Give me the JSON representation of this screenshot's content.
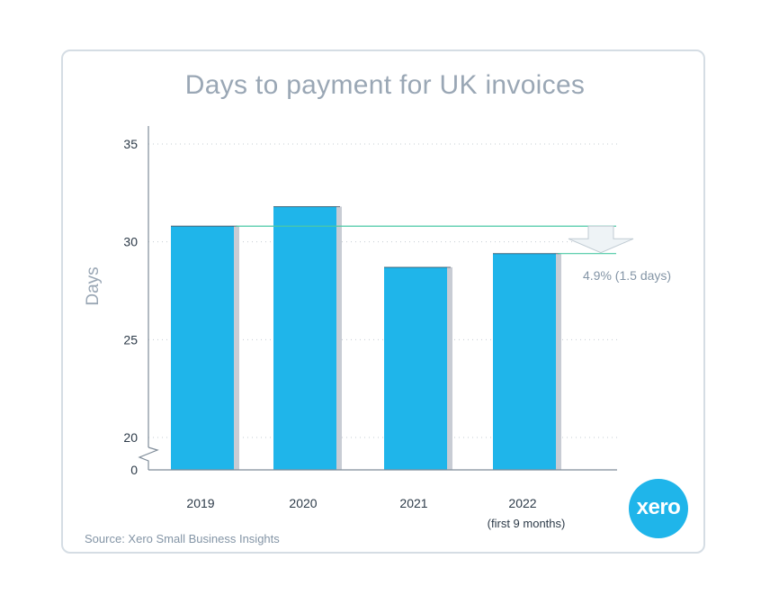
{
  "chart_data": {
    "type": "bar",
    "title": "Days to payment for UK invoices",
    "ylabel": "Days",
    "categories": [
      "2019",
      "2020",
      "2021",
      "2022"
    ],
    "category_sublabels": [
      "",
      "",
      "",
      "(first 9 months)"
    ],
    "values": [
      30.8,
      31.8,
      28.7,
      29.4
    ],
    "yticks": [
      0,
      20,
      25,
      30,
      35
    ],
    "ylim": [
      20,
      35
    ],
    "axis_break": true,
    "grid": "dotted horizontal",
    "annotation": "4.9% (1.5 days)",
    "colors": {
      "bar": "#1fb5ea",
      "bar_shadow": "#c8ccd4",
      "reference_line": "#4cc9a6",
      "arrow_fill": "#eef3f6"
    }
  },
  "source": "Source: Xero Small Business Insights",
  "logo_text": "xero"
}
